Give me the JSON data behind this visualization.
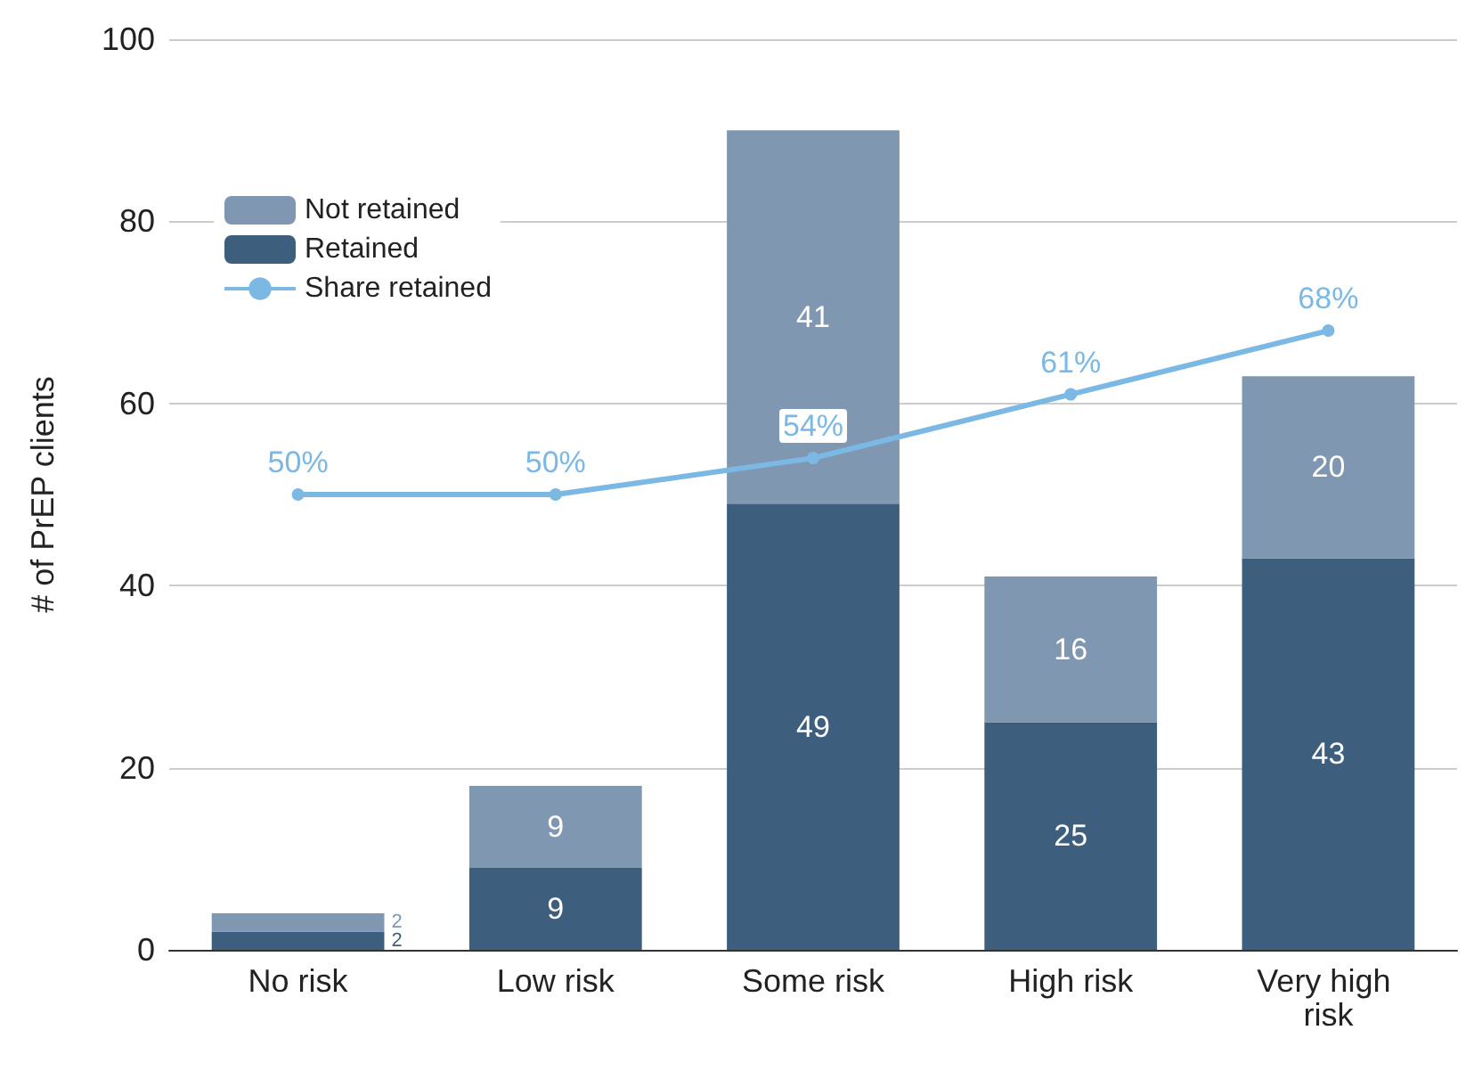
{
  "chart_data": {
    "type": "bar",
    "ylabel": "# of PrEP clients",
    "categories": [
      "No risk",
      "Low risk",
      "Some risk",
      "High risk",
      "Very high risk"
    ],
    "stacked": true,
    "data_labels": true,
    "ylim": [
      0,
      100
    ],
    "yticks": [
      0,
      20,
      40,
      60,
      80,
      100
    ],
    "grid": "y",
    "legend": "top left",
    "marker": "circle",
    "series": [
      {
        "name": "Retained",
        "color": "#3d5f7d",
        "values": [
          2,
          9,
          49,
          25,
          43
        ]
      },
      {
        "name": "Not retained",
        "color": "#7f97b0",
        "values": [
          2,
          9,
          41,
          16,
          20
        ]
      },
      {
        "name": "Share retained",
        "type": "line",
        "color": "#7cb8e4",
        "values": [
          50,
          50,
          54,
          61,
          68
        ],
        "value_labels": [
          "50%",
          "50%",
          "54%",
          "61%",
          "68%"
        ]
      }
    ]
  }
}
